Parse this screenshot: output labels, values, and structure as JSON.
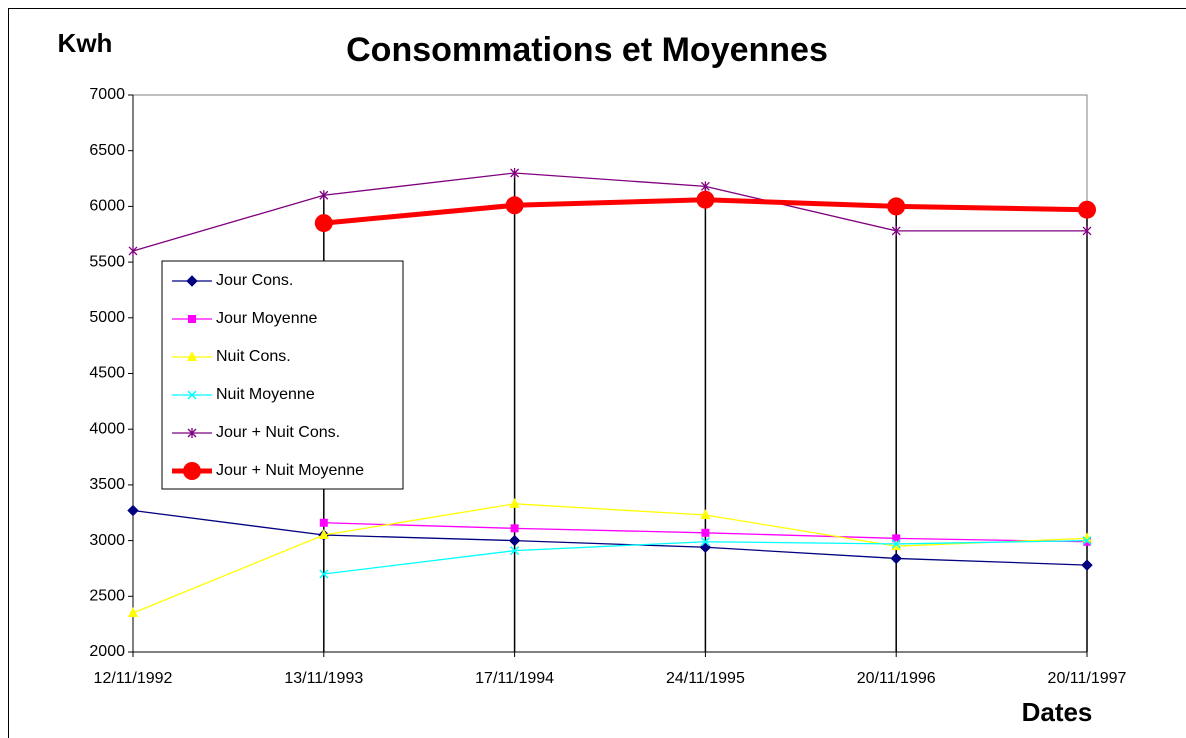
{
  "chart_data": {
    "type": "line",
    "title": "Consommations et Moyennes",
    "y_label": "Kwh",
    "x_label": "Dates",
    "categories": [
      "12/11/1992",
      "13/11/1993",
      "17/11/1994",
      "24/11/1995",
      "20/11/1996",
      "20/11/1997"
    ],
    "series": [
      {
        "name": "Jour Cons.",
        "color": "#000080",
        "marker": "diamond",
        "values": [
          3270,
          3050,
          3000,
          2940,
          2840,
          2780
        ]
      },
      {
        "name": "Jour Moyenne",
        "color": "#ff00ff",
        "marker": "square",
        "values": [
          null,
          3160,
          3110,
          3070,
          3020,
          2990
        ]
      },
      {
        "name": "Nuit Cons.",
        "color": "#ffff00",
        "marker": "triangle",
        "values": [
          2350,
          3050,
          3330,
          3230,
          2950,
          3020
        ]
      },
      {
        "name": "Nuit Moyenne",
        "color": "#00ffff",
        "marker": "x",
        "values": [
          null,
          2700,
          2910,
          2990,
          2970,
          3000
        ]
      },
      {
        "name": "Jour + Nuit Cons.",
        "color": "#800080",
        "marker": "star",
        "values": [
          5600,
          6100,
          6300,
          6180,
          5780,
          5780
        ]
      },
      {
        "name": "Jour + Nuit Moyenne",
        "color": "#ff0000",
        "marker": "circle",
        "width": 5,
        "values": [
          null,
          5850,
          6010,
          6060,
          6000,
          5970
        ]
      }
    ],
    "ylim": [
      2000,
      7000
    ],
    "yticks": [
      2000,
      2500,
      3000,
      3500,
      4000,
      4500,
      5000,
      5500,
      6000,
      6500,
      7000
    ],
    "drop_lines": true,
    "legend": "left"
  }
}
